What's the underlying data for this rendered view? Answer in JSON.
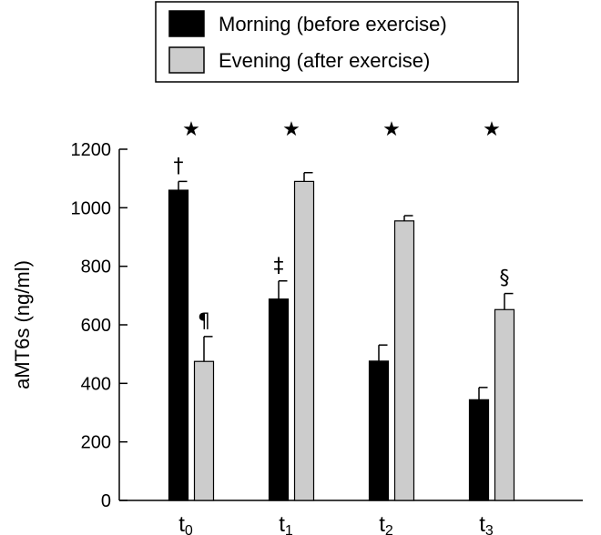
{
  "chart_data": {
    "type": "bar",
    "ylabel": "aMT6s (ng/ml)",
    "ylim": [
      0,
      1200
    ],
    "yticks": [
      0,
      200,
      400,
      600,
      800,
      1000,
      1200
    ],
    "categories": [
      {
        "base": "t",
        "sub": "0"
      },
      {
        "base": "t",
        "sub": "1"
      },
      {
        "base": "t",
        "sub": "2"
      },
      {
        "base": "t",
        "sub": "3"
      }
    ],
    "series": [
      {
        "name": "Morning (before exercise)",
        "color": "#000000",
        "values": [
          1060,
          688,
          476,
          344
        ],
        "errors": [
          30,
          62,
          55,
          42
        ]
      },
      {
        "name": "Evening (after exercise)",
        "color": "#cccccc",
        "values": [
          475,
          1090,
          955,
          652
        ],
        "errors": [
          85,
          30,
          18,
          55
        ]
      }
    ],
    "legend_position": "top",
    "group_marks": [
      "★",
      "★",
      "★",
      "★"
    ],
    "bar_marks": [
      {
        "category": 0,
        "series": 0,
        "text": "†"
      },
      {
        "category": 0,
        "series": 1,
        "text": "¶"
      },
      {
        "category": 1,
        "series": 0,
        "text": "‡"
      },
      {
        "category": 3,
        "series": 1,
        "text": "§"
      }
    ]
  }
}
